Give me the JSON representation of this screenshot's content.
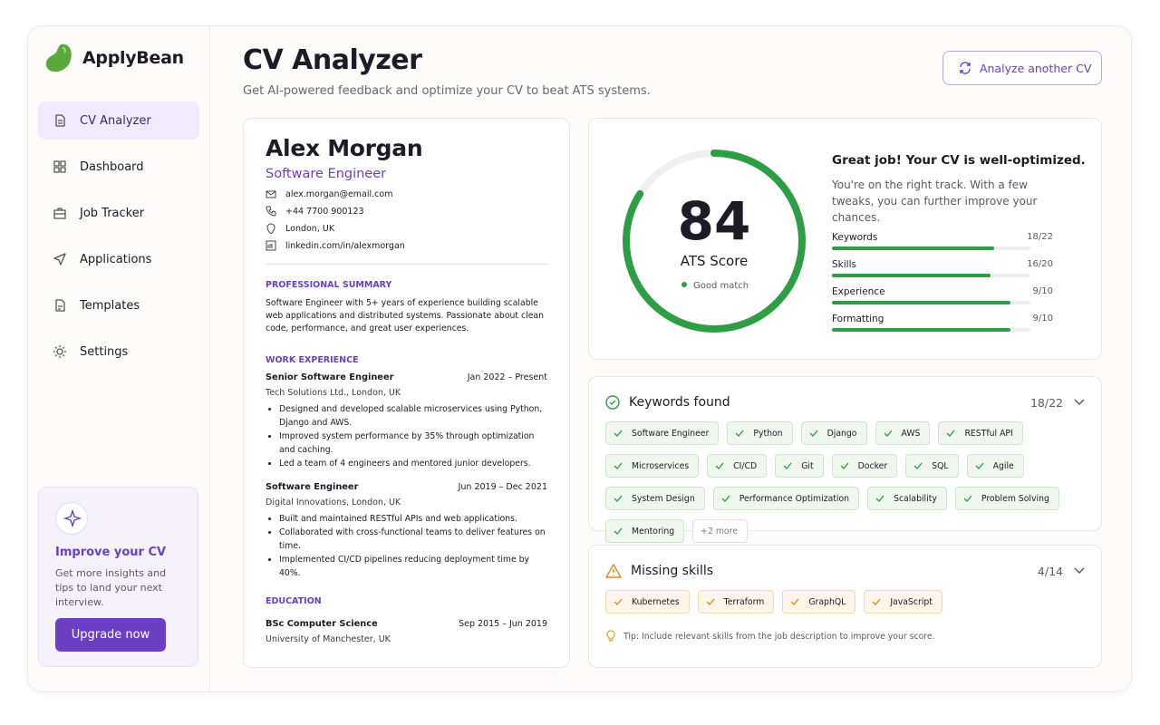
{
  "brand": "ApplyBean",
  "nav": [
    "CV Analyzer",
    "Dashboard",
    "Job Tracker",
    "Applications",
    "Templates",
    "Settings"
  ],
  "promo": {
    "title": "Improve your CV",
    "text": "Get more insights and tips to land your next interview.",
    "button": "Upgrade now"
  },
  "header": {
    "title": "CV Analyzer",
    "subtitle": "Get AI-powered feedback and optimize your CV to beat ATS systems.",
    "action": "Analyze another CV"
  },
  "cv": {
    "name": "Alex Morgan",
    "role": "Software Engineer",
    "contacts": [
      "alex.morgan@email.com",
      "+44 7700 900123",
      "London, UK",
      "linkedin.com/in/alexmorgan"
    ],
    "summary_title": "PROFESSIONAL SUMMARY",
    "summary": "Software Engineer with 5+ years of experience building scalable web applications and distributed systems. Passionate about clean code, performance, and great user experiences.",
    "experience_title": "WORK EXPERIENCE",
    "experience": [
      {
        "title": "Senior Software Engineer",
        "date": "Jan 2022 – Present",
        "company": "Tech Solutions Ltd., London, UK",
        "bullets": [
          "Designed and developed scalable microservices using Python, Django and AWS.",
          "Improved system performance by 35% through optimization and caching.",
          "Led a team of 4 engineers and mentored junior developers."
        ]
      },
      {
        "title": "Software Engineer",
        "date": "Jun 2019 – Dec 2021",
        "company": "Digital Innovations, London, UK",
        "bullets": [
          "Built and maintained RESTful APIs and web applications.",
          "Collaborated with cross-functional teams to deliver features on time.",
          "Implemented CI/CD pipelines reducing deployment time by 40%."
        ]
      }
    ],
    "education_title": "EDUCATION",
    "education": {
      "degree": "BSc Computer Science",
      "date": "Sep 2015 – Jun 2019",
      "school": "University of Manchester, UK"
    }
  },
  "score": {
    "value": "84",
    "label": "ATS Score",
    "status": "Good match",
    "headline": "Great job! Your CV is well-optimized.",
    "text": "You're on the right track. With a few tweaks, you can further improve your chances.",
    "metrics": [
      {
        "label": "Keywords",
        "value": "18/22"
      },
      {
        "label": "Skills",
        "value": "16/20"
      },
      {
        "label": "Experience",
        "value": "9/10"
      },
      {
        "label": "Formatting",
        "value": "9/10"
      }
    ]
  },
  "keywords": {
    "title": "Keywords found",
    "count": "18/22",
    "items": [
      "Software Engineer",
      "Python",
      "Django",
      "AWS",
      "RESTful API",
      "Microservices",
      "CI/CD",
      "Git",
      "Docker",
      "SQL",
      "Agile",
      "System Design",
      "Performance Optimization",
      "Scalability",
      "Problem Solving",
      "Mentoring"
    ],
    "more": "+2 more"
  },
  "missing": {
    "title": "Missing skills",
    "count": "4/14",
    "items": [
      "Kubernetes",
      "Terraform",
      "GraphQL",
      "JavaScript"
    ],
    "tip_label": "Tip:",
    "tip": "Include relevant skills from the job description to improve your score."
  }
}
